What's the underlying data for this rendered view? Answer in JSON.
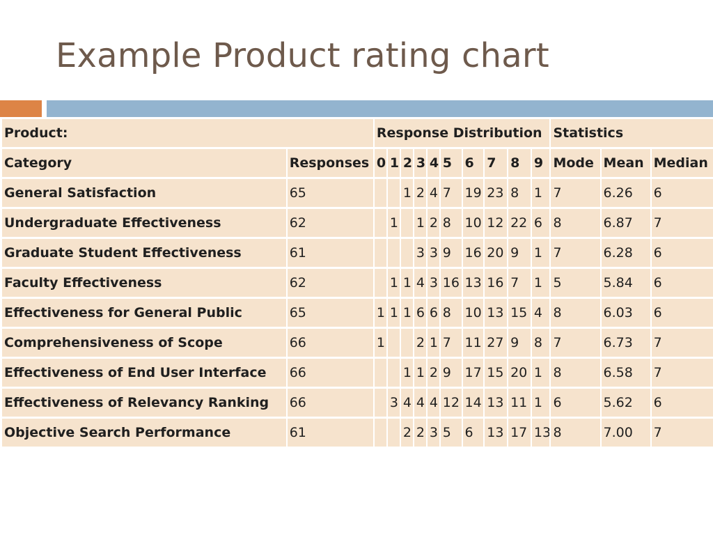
{
  "slide": {
    "title": "Example Product rating chart",
    "accent_colors": {
      "orange": "#dd8446",
      "blue": "#93b4cf"
    }
  },
  "table": {
    "header_row_1": {
      "product": "Product:",
      "response_distribution": "Response Distribution",
      "statistics": "Statistics"
    },
    "header_row_2": [
      "Category",
      "Responses",
      "0",
      "1",
      "2",
      "3",
      "4",
      "5",
      "6",
      "7",
      "8",
      "9",
      "Mode",
      "Mean",
      "Median"
    ],
    "rows": [
      [
        "General Satisfaction",
        "65",
        "",
        "",
        "1",
        "2",
        "4",
        "7",
        "19",
        "23",
        "8",
        "1",
        "7",
        "6.26",
        "6"
      ],
      [
        "Undergraduate Effectiveness",
        "62",
        "",
        "1",
        "",
        "1",
        "2",
        "8",
        "10",
        "12",
        "22",
        "6",
        "8",
        "6.87",
        "7"
      ],
      [
        "Graduate Student Effectiveness",
        "61",
        "",
        "",
        "",
        "3",
        "3",
        "9",
        "16",
        "20",
        "9",
        "1",
        "7",
        "6.28",
        "6"
      ],
      [
        "Faculty Effectiveness",
        "62",
        "",
        "1",
        "1",
        "4",
        "3",
        "16",
        "13",
        "16",
        "7",
        "1",
        "5",
        "5.84",
        "6"
      ],
      [
        "Effectiveness for General Public",
        "65",
        "1",
        "1",
        "1",
        "6",
        "6",
        "8",
        "10",
        "13",
        "15",
        "4",
        "8",
        "6.03",
        "6"
      ],
      [
        "Comprehensiveness of Scope",
        "66",
        "1",
        "",
        "",
        "2",
        "1",
        "7",
        "11",
        "27",
        "9",
        "8",
        "7",
        "6.73",
        "7"
      ],
      [
        "Effectiveness of End User Interface",
        "66",
        "",
        "",
        "1",
        "1",
        "2",
        "9",
        "17",
        "15",
        "20",
        "1",
        "8",
        "6.58",
        "7"
      ],
      [
        "Effectiveness of Relevancy Ranking",
        "66",
        "",
        "3",
        "4",
        "4",
        "4",
        "12",
        "14",
        "13",
        "11",
        "1",
        "6",
        "5.62",
        "6"
      ],
      [
        "Objective Search Performance",
        "61",
        "",
        "",
        "2",
        "2",
        "3",
        "5",
        "6",
        "13",
        "17",
        "13",
        "8",
        "7.00",
        "7"
      ]
    ]
  }
}
